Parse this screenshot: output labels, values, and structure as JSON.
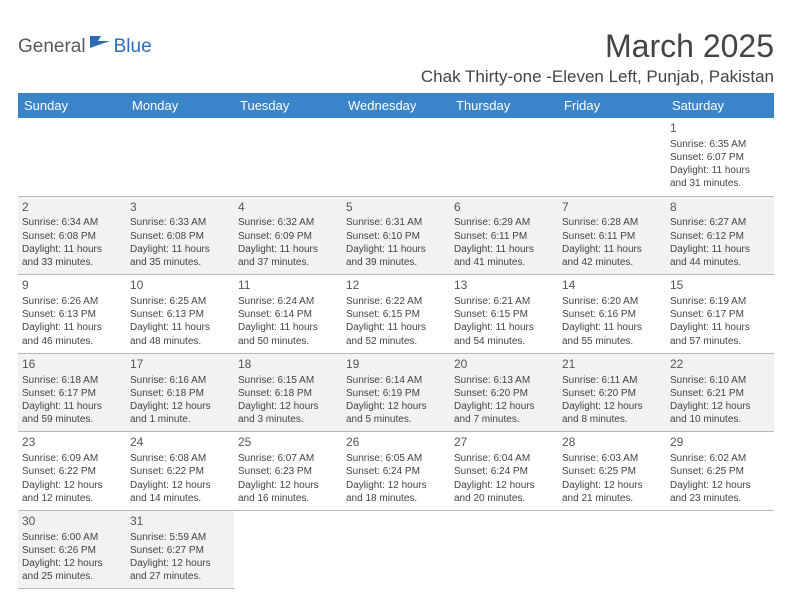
{
  "logo": {
    "word1": "General",
    "word2": "Blue",
    "icon_fill": "#2a6db5"
  },
  "header": {
    "title": "March 2025",
    "location": "Chak Thirty-one -Eleven Left, Punjab, Pakistan"
  },
  "colors": {
    "header_bg": "#3a85c9",
    "header_text": "#ffffff",
    "row_alt_bg": "#f2f2f2"
  },
  "weekdays": [
    "Sunday",
    "Monday",
    "Tuesday",
    "Wednesday",
    "Thursday",
    "Friday",
    "Saturday"
  ],
  "weeks": [
    [
      null,
      null,
      null,
      null,
      null,
      null,
      {
        "n": "1",
        "sr": "Sunrise: 6:35 AM",
        "ss": "Sunset: 6:07 PM",
        "d1": "Daylight: 11 hours",
        "d2": "and 31 minutes."
      }
    ],
    [
      {
        "n": "2",
        "sr": "Sunrise: 6:34 AM",
        "ss": "Sunset: 6:08 PM",
        "d1": "Daylight: 11 hours",
        "d2": "and 33 minutes."
      },
      {
        "n": "3",
        "sr": "Sunrise: 6:33 AM",
        "ss": "Sunset: 6:08 PM",
        "d1": "Daylight: 11 hours",
        "d2": "and 35 minutes."
      },
      {
        "n": "4",
        "sr": "Sunrise: 6:32 AM",
        "ss": "Sunset: 6:09 PM",
        "d1": "Daylight: 11 hours",
        "d2": "and 37 minutes."
      },
      {
        "n": "5",
        "sr": "Sunrise: 6:31 AM",
        "ss": "Sunset: 6:10 PM",
        "d1": "Daylight: 11 hours",
        "d2": "and 39 minutes."
      },
      {
        "n": "6",
        "sr": "Sunrise: 6:29 AM",
        "ss": "Sunset: 6:11 PM",
        "d1": "Daylight: 11 hours",
        "d2": "and 41 minutes."
      },
      {
        "n": "7",
        "sr": "Sunrise: 6:28 AM",
        "ss": "Sunset: 6:11 PM",
        "d1": "Daylight: 11 hours",
        "d2": "and 42 minutes."
      },
      {
        "n": "8",
        "sr": "Sunrise: 6:27 AM",
        "ss": "Sunset: 6:12 PM",
        "d1": "Daylight: 11 hours",
        "d2": "and 44 minutes."
      }
    ],
    [
      {
        "n": "9",
        "sr": "Sunrise: 6:26 AM",
        "ss": "Sunset: 6:13 PM",
        "d1": "Daylight: 11 hours",
        "d2": "and 46 minutes."
      },
      {
        "n": "10",
        "sr": "Sunrise: 6:25 AM",
        "ss": "Sunset: 6:13 PM",
        "d1": "Daylight: 11 hours",
        "d2": "and 48 minutes."
      },
      {
        "n": "11",
        "sr": "Sunrise: 6:24 AM",
        "ss": "Sunset: 6:14 PM",
        "d1": "Daylight: 11 hours",
        "d2": "and 50 minutes."
      },
      {
        "n": "12",
        "sr": "Sunrise: 6:22 AM",
        "ss": "Sunset: 6:15 PM",
        "d1": "Daylight: 11 hours",
        "d2": "and 52 minutes."
      },
      {
        "n": "13",
        "sr": "Sunrise: 6:21 AM",
        "ss": "Sunset: 6:15 PM",
        "d1": "Daylight: 11 hours",
        "d2": "and 54 minutes."
      },
      {
        "n": "14",
        "sr": "Sunrise: 6:20 AM",
        "ss": "Sunset: 6:16 PM",
        "d1": "Daylight: 11 hours",
        "d2": "and 55 minutes."
      },
      {
        "n": "15",
        "sr": "Sunrise: 6:19 AM",
        "ss": "Sunset: 6:17 PM",
        "d1": "Daylight: 11 hours",
        "d2": "and 57 minutes."
      }
    ],
    [
      {
        "n": "16",
        "sr": "Sunrise: 6:18 AM",
        "ss": "Sunset: 6:17 PM",
        "d1": "Daylight: 11 hours",
        "d2": "and 59 minutes."
      },
      {
        "n": "17",
        "sr": "Sunrise: 6:16 AM",
        "ss": "Sunset: 6:18 PM",
        "d1": "Daylight: 12 hours",
        "d2": "and 1 minute."
      },
      {
        "n": "18",
        "sr": "Sunrise: 6:15 AM",
        "ss": "Sunset: 6:18 PM",
        "d1": "Daylight: 12 hours",
        "d2": "and 3 minutes."
      },
      {
        "n": "19",
        "sr": "Sunrise: 6:14 AM",
        "ss": "Sunset: 6:19 PM",
        "d1": "Daylight: 12 hours",
        "d2": "and 5 minutes."
      },
      {
        "n": "20",
        "sr": "Sunrise: 6:13 AM",
        "ss": "Sunset: 6:20 PM",
        "d1": "Daylight: 12 hours",
        "d2": "and 7 minutes."
      },
      {
        "n": "21",
        "sr": "Sunrise: 6:11 AM",
        "ss": "Sunset: 6:20 PM",
        "d1": "Daylight: 12 hours",
        "d2": "and 8 minutes."
      },
      {
        "n": "22",
        "sr": "Sunrise: 6:10 AM",
        "ss": "Sunset: 6:21 PM",
        "d1": "Daylight: 12 hours",
        "d2": "and 10 minutes."
      }
    ],
    [
      {
        "n": "23",
        "sr": "Sunrise: 6:09 AM",
        "ss": "Sunset: 6:22 PM",
        "d1": "Daylight: 12 hours",
        "d2": "and 12 minutes."
      },
      {
        "n": "24",
        "sr": "Sunrise: 6:08 AM",
        "ss": "Sunset: 6:22 PM",
        "d1": "Daylight: 12 hours",
        "d2": "and 14 minutes."
      },
      {
        "n": "25",
        "sr": "Sunrise: 6:07 AM",
        "ss": "Sunset: 6:23 PM",
        "d1": "Daylight: 12 hours",
        "d2": "and 16 minutes."
      },
      {
        "n": "26",
        "sr": "Sunrise: 6:05 AM",
        "ss": "Sunset: 6:24 PM",
        "d1": "Daylight: 12 hours",
        "d2": "and 18 minutes."
      },
      {
        "n": "27",
        "sr": "Sunrise: 6:04 AM",
        "ss": "Sunset: 6:24 PM",
        "d1": "Daylight: 12 hours",
        "d2": "and 20 minutes."
      },
      {
        "n": "28",
        "sr": "Sunrise: 6:03 AM",
        "ss": "Sunset: 6:25 PM",
        "d1": "Daylight: 12 hours",
        "d2": "and 21 minutes."
      },
      {
        "n": "29",
        "sr": "Sunrise: 6:02 AM",
        "ss": "Sunset: 6:25 PM",
        "d1": "Daylight: 12 hours",
        "d2": "and 23 minutes."
      }
    ],
    [
      {
        "n": "30",
        "sr": "Sunrise: 6:00 AM",
        "ss": "Sunset: 6:26 PM",
        "d1": "Daylight: 12 hours",
        "d2": "and 25 minutes."
      },
      {
        "n": "31",
        "sr": "Sunrise: 5:59 AM",
        "ss": "Sunset: 6:27 PM",
        "d1": "Daylight: 12 hours",
        "d2": "and 27 minutes."
      },
      null,
      null,
      null,
      null,
      null
    ]
  ]
}
